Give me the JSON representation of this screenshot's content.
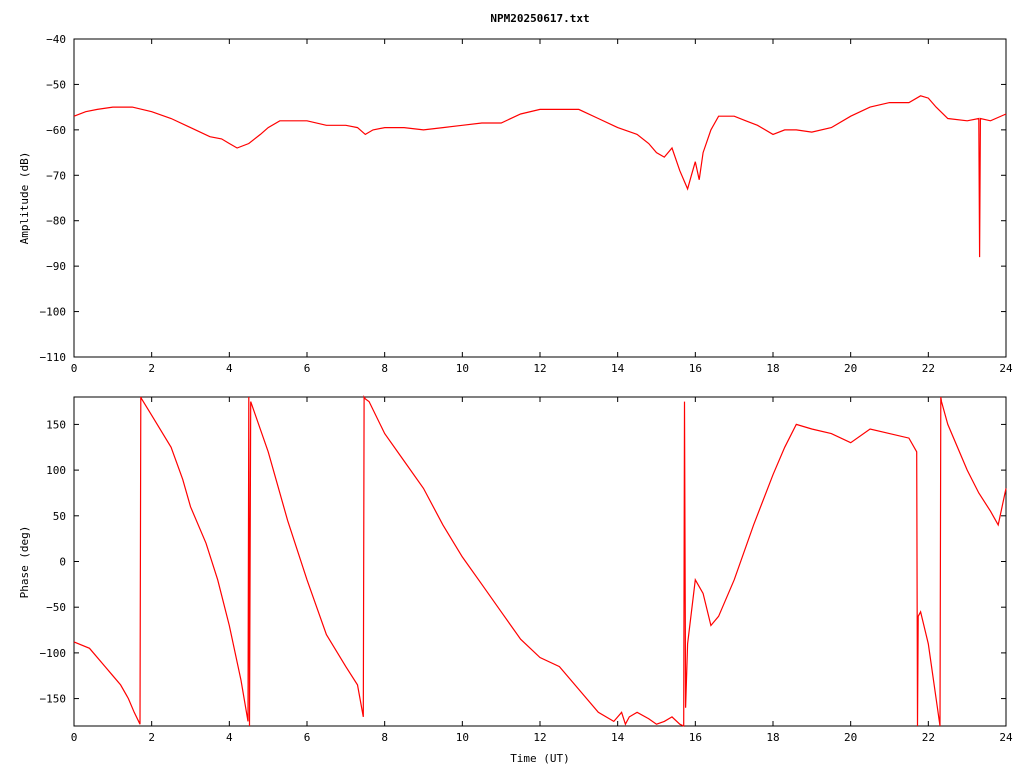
{
  "chart_data": [
    {
      "type": "line",
      "title": "NPM20250617.txt",
      "xlabel": "",
      "ylabel": "Amplitude (dB)",
      "xlim": [
        0,
        24
      ],
      "ylim": [
        -110,
        -40
      ],
      "x_ticks": [
        "0",
        "2",
        "4",
        "6",
        "8",
        "10",
        "12",
        "14",
        "16",
        "18",
        "20",
        "22",
        "24"
      ],
      "y_ticks": [
        "-40",
        "-50",
        "-60",
        "-70",
        "-80",
        "-90",
        "-100",
        "-110"
      ],
      "line_color": "#ff0000",
      "series": [
        {
          "x": [
            0,
            0.3,
            0.6,
            1,
            1.5,
            2,
            2.5,
            3,
            3.5,
            3.8,
            4,
            4.2,
            4.5,
            4.8,
            5,
            5.3,
            5.7,
            6,
            6.5,
            7,
            7.3,
            7.5,
            7.7,
            8,
            8.5,
            9,
            9.5,
            10,
            10.5,
            11,
            11.5,
            12,
            12.5,
            13,
            13.5,
            14,
            14.5,
            14.8,
            15,
            15.2,
            15.4,
            15.6,
            15.8,
            15.9,
            16,
            16.1,
            16.2,
            16.4,
            16.6,
            17,
            17.3,
            17.6,
            18,
            18.3,
            18.6,
            19,
            19.5,
            20,
            20.5,
            21,
            21.5,
            21.8,
            22,
            22.2,
            22.5,
            23,
            23.3,
            23.32,
            23.34,
            23.6,
            24
          ],
          "y": [
            -57,
            -56,
            -55.5,
            -55,
            -55,
            -56,
            -57.5,
            -59.5,
            -61.5,
            -62,
            -63,
            -64,
            -63,
            -61,
            -59.5,
            -58,
            -58,
            -58,
            -59,
            -59,
            -59.5,
            -61,
            -60,
            -59.5,
            -59.5,
            -60,
            -59.5,
            -59,
            -58.5,
            -58.5,
            -56.5,
            -55.5,
            -55.5,
            -55.5,
            -57.5,
            -59.5,
            -61,
            -63,
            -65,
            -66,
            -64,
            -69,
            -73,
            -70,
            -67,
            -71,
            -65,
            -60,
            -57,
            -57,
            -58,
            -59,
            -61,
            -60,
            -60,
            -60.5,
            -59.5,
            -57,
            -55,
            -54,
            -54,
            -52.5,
            -53,
            -55,
            -57.5,
            -58,
            -57.5,
            -88,
            -57.5,
            -58,
            -56.5
          ]
        }
      ]
    },
    {
      "type": "line",
      "title": "",
      "xlabel": "Time (UT)",
      "ylabel": "Phase (deg)",
      "xlim": [
        0,
        24
      ],
      "ylim": [
        -180,
        180
      ],
      "x_ticks": [
        "0",
        "2",
        "4",
        "6",
        "8",
        "10",
        "12",
        "14",
        "16",
        "18",
        "20",
        "22",
        "24"
      ],
      "y_ticks": [
        "150",
        "100",
        "50",
        "0",
        "-50",
        "-100",
        "-150"
      ],
      "line_color": "#ff0000",
      "series": [
        {
          "x": [
            0,
            0.4,
            0.8,
            1,
            1.2,
            1.4,
            1.55,
            1.7,
            1.72,
            1.74,
            2,
            2.5,
            2.8,
            3,
            3.4,
            3.7,
            4,
            4.3,
            4.48,
            4.5,
            4.52,
            4.55,
            5,
            5.5,
            6,
            6.5,
            7,
            7.3,
            7.45,
            7.47,
            7.5,
            7.6,
            8,
            8.5,
            9,
            9.5,
            10,
            10.5,
            11,
            11.5,
            12,
            12.5,
            13,
            13.5,
            13.9,
            14,
            14.1,
            14.2,
            14.3,
            14.5,
            14.8,
            15,
            15.2,
            15.4,
            15.6,
            15.7,
            15.72,
            15.75,
            15.8,
            16,
            16.2,
            16.4,
            16.6,
            17,
            17.5,
            18,
            18.3,
            18.6,
            19,
            19.5,
            20,
            20.5,
            21,
            21.5,
            21.7,
            21.72,
            21.74,
            21.8,
            22,
            22.2,
            22.3,
            22.32,
            22.34,
            22.5,
            23,
            23.3,
            23.6,
            23.8,
            24
          ],
          "y": [
            -88,
            -95,
            -115,
            -125,
            -135,
            -150,
            -165,
            -178,
            180,
            178,
            160,
            125,
            90,
            60,
            20,
            -20,
            -70,
            -130,
            -175,
            180,
            -180,
            175,
            120,
            45,
            -20,
            -80,
            -115,
            -135,
            -170,
            180,
            178,
            175,
            140,
            110,
            80,
            40,
            5,
            -25,
            -55,
            -85,
            -105,
            -115,
            -140,
            -165,
            -175,
            -170,
            -165,
            -178,
            -170,
            -165,
            -172,
            -178,
            -175,
            -170,
            -178,
            -180,
            175,
            -160,
            -90,
            -20,
            -35,
            -70,
            -60,
            -20,
            40,
            95,
            125,
            150,
            145,
            140,
            130,
            145,
            140,
            135,
            120,
            -180,
            -60,
            -55,
            -90,
            -150,
            -180,
            180,
            175,
            150,
            100,
            75,
            55,
            40,
            80
          ]
        }
      ]
    }
  ]
}
